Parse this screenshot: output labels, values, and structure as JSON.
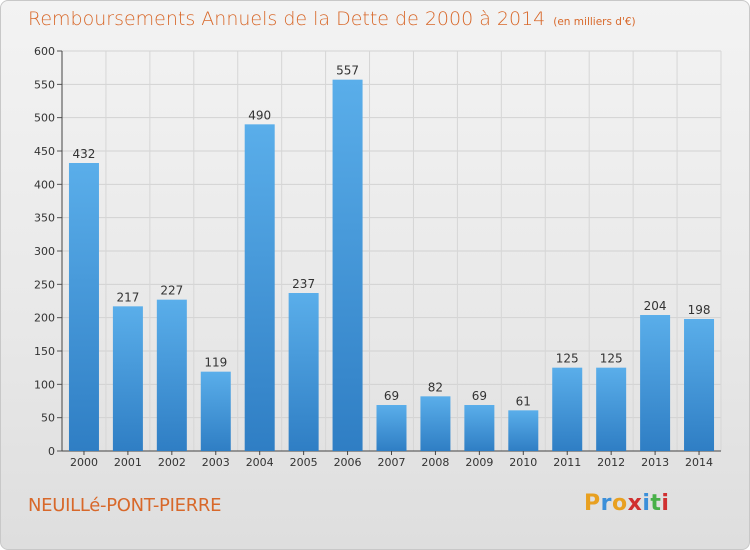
{
  "header": {
    "title": "Remboursements Annuels de la Dette de 2000 à 2014",
    "subtitle": "(en milliers d'€)"
  },
  "footer": {
    "commune": "NEUILLé-PONT-PIERRE",
    "logo_text": "Proxiti"
  },
  "colors": {
    "title": "#d8682a",
    "bar_top": "#5aaeea",
    "bar_bottom": "#2f7ec4",
    "logo": [
      "#e8a020",
      "#3b8fd9",
      "#e8a020",
      "#d03030",
      "#3b8fd9",
      "#48b048",
      "#d03030"
    ]
  },
  "chart_data": {
    "type": "bar",
    "title": "Remboursements Annuels de la Dette de 2000 à 2014",
    "subtitle": "(en milliers d'€)",
    "categories": [
      "2000",
      "2001",
      "2002",
      "2003",
      "2004",
      "2005",
      "2006",
      "2007",
      "2008",
      "2009",
      "2010",
      "2011",
      "2012",
      "2013",
      "2014"
    ],
    "values": [
      432,
      217,
      227,
      119,
      490,
      237,
      557,
      69,
      82,
      69,
      61,
      125,
      125,
      204,
      198
    ],
    "ylim": [
      0,
      600
    ],
    "yticks": [
      0,
      50,
      100,
      150,
      200,
      250,
      300,
      350,
      400,
      450,
      500,
      550,
      600
    ],
    "xlabel": "",
    "ylabel": "",
    "grid": true,
    "data_labels": true
  }
}
